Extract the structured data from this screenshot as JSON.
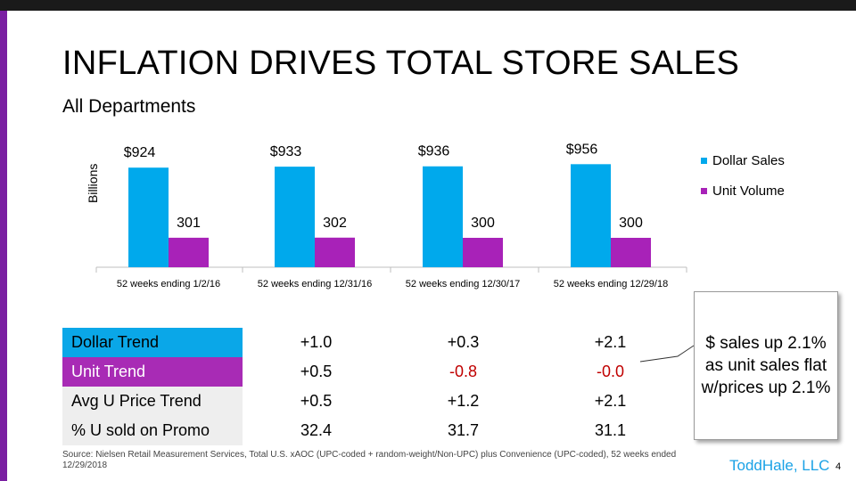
{
  "slide": {
    "title": "INFLATION DRIVES TOTAL STORE SALES",
    "subtitle": "All Departments",
    "page_number": "4",
    "logo_text": "ToddHale, LLC",
    "source": "Source: Nielsen Retail Measurement Services, Total U.S. xAOC (UPC-coded + random-weight/Non-UPC) plus Convenience (UPC-coded), 52 weeks ended 12/29/2018",
    "callout": "$ sales up 2.1% as unit sales flat w/prices up 2.1%"
  },
  "colors": {
    "dollar": "#00a9ec",
    "unit": "#a822b8",
    "accent_bar": "#7a1fa2"
  },
  "chart_data": {
    "type": "bar",
    "ylabel": "Billions",
    "categories": [
      "52 weeks ending 1/2/16",
      "52 weeks ending 12/31/16",
      "52 weeks ending 12/30/17",
      "52 weeks ending 12/29/18"
    ],
    "series": [
      {
        "name": "Dollar Sales",
        "values": [
          924,
          933,
          936,
          956
        ],
        "labels": [
          "$924",
          "$933",
          "$936",
          "$956"
        ]
      },
      {
        "name": "Unit Volume",
        "values": [
          301,
          302,
          300,
          300
        ],
        "labels": [
          "301",
          "302",
          "300",
          "300"
        ]
      }
    ],
    "legend_position": "right"
  },
  "table": {
    "rows": [
      {
        "label": "Dollar Trend",
        "values": [
          "+1.0",
          "+0.3",
          "+2.1"
        ]
      },
      {
        "label": "Unit Trend",
        "values": [
          "+0.5",
          "-0.8",
          "-0.0"
        ]
      },
      {
        "label": "Avg U Price Trend",
        "values": [
          "+0.5",
          "+1.2",
          "+2.1"
        ]
      },
      {
        "label": "% U sold on Promo",
        "values": [
          "32.4",
          "31.7",
          "31.1"
        ]
      }
    ]
  }
}
